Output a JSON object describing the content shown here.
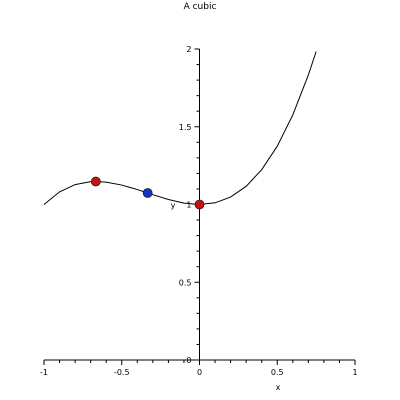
{
  "chart_data": {
    "type": "line",
    "title": "A cubic",
    "xlabel": "x",
    "ylabel": "y",
    "xlim": [
      -1,
      1
    ],
    "ylim": [
      0,
      2
    ],
    "x_ticks": [
      -1,
      -0.5,
      0,
      0.5,
      1
    ],
    "x_tick_labels": [
      "-1",
      "-0.5",
      "0",
      "0.5",
      "1"
    ],
    "y_ticks": [
      0,
      0.5,
      1,
      1.5,
      2
    ],
    "y_tick_labels": [
      "0",
      "0.5",
      "1",
      "1.5",
      "2"
    ],
    "grid": false,
    "series": [
      {
        "x": [
          -1,
          -0.9,
          -0.8,
          -0.7,
          -0.6667,
          -0.6,
          -0.5,
          -0.4,
          -0.3333,
          -0.3,
          -0.2,
          -0.1,
          0,
          0.1,
          0.2,
          0.3,
          0.4,
          0.5,
          0.6,
          0.7,
          0.75
        ],
        "y": [
          1,
          1.081,
          1.128,
          1.147,
          1.148,
          1.144,
          1.125,
          1.096,
          1.074,
          1.063,
          1.032,
          1.009,
          1,
          1.011,
          1.048,
          1.117,
          1.224,
          1.375,
          1.576,
          1.833,
          1.984
        ],
        "color": "#000000"
      }
    ],
    "points": [
      {
        "x": -0.6667,
        "y": 1.148,
        "color": "#cc1111"
      },
      {
        "x": -0.3333,
        "y": 1.074,
        "color": "#1133cc"
      },
      {
        "x": 0,
        "y": 1,
        "color": "#cc1111"
      }
    ]
  }
}
